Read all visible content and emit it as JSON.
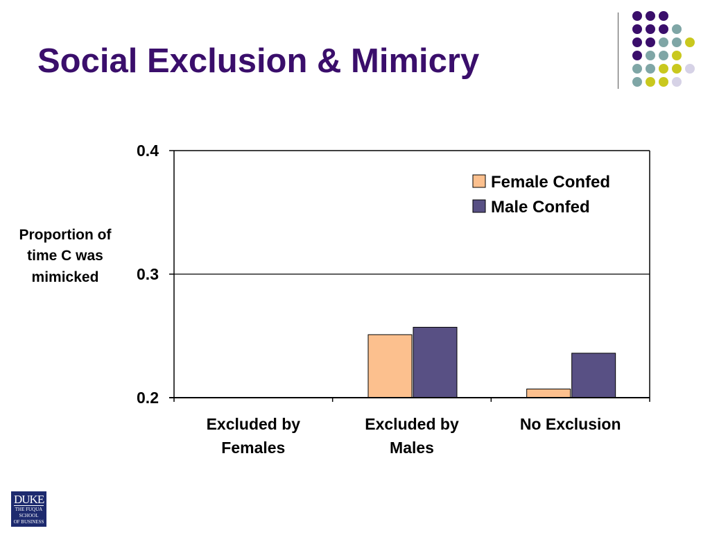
{
  "slide": {
    "title": "Social Exclusion & Mimicry"
  },
  "logo": {
    "name": "DUKE",
    "sub": "THE FUQUA SCHOOL OF BUSINESS"
  },
  "decoration": {
    "dot_colors": [
      "#3a0e6b",
      "#7fa6a6",
      "#c9c81e",
      "#d6d2e6"
    ]
  },
  "chart_data": {
    "type": "bar",
    "ylabel": "Proportion of time C was mimicked",
    "xlabel": "",
    "ylim": [
      0.2,
      0.4
    ],
    "yticks": [
      "0.4",
      "0.3",
      "0.2"
    ],
    "ytick_values": [
      0.4,
      0.3,
      0.2
    ],
    "categories": [
      "Excluded by Females",
      "Excluded by Males",
      "No Exclusion"
    ],
    "category_lines": [
      [
        "Excluded by",
        "Females"
      ],
      [
        "Excluded by",
        "Males"
      ],
      [
        "No Exclusion"
      ]
    ],
    "series": [
      {
        "name": "Female Confed",
        "color": "#fcc08e",
        "values": [
          0.2,
          0.251,
          0.207
        ]
      },
      {
        "name": "Male Confed",
        "color": "#585084",
        "values": [
          0.2,
          0.257,
          0.236
        ]
      }
    ],
    "grid": true,
    "legend_position": "top-right"
  }
}
